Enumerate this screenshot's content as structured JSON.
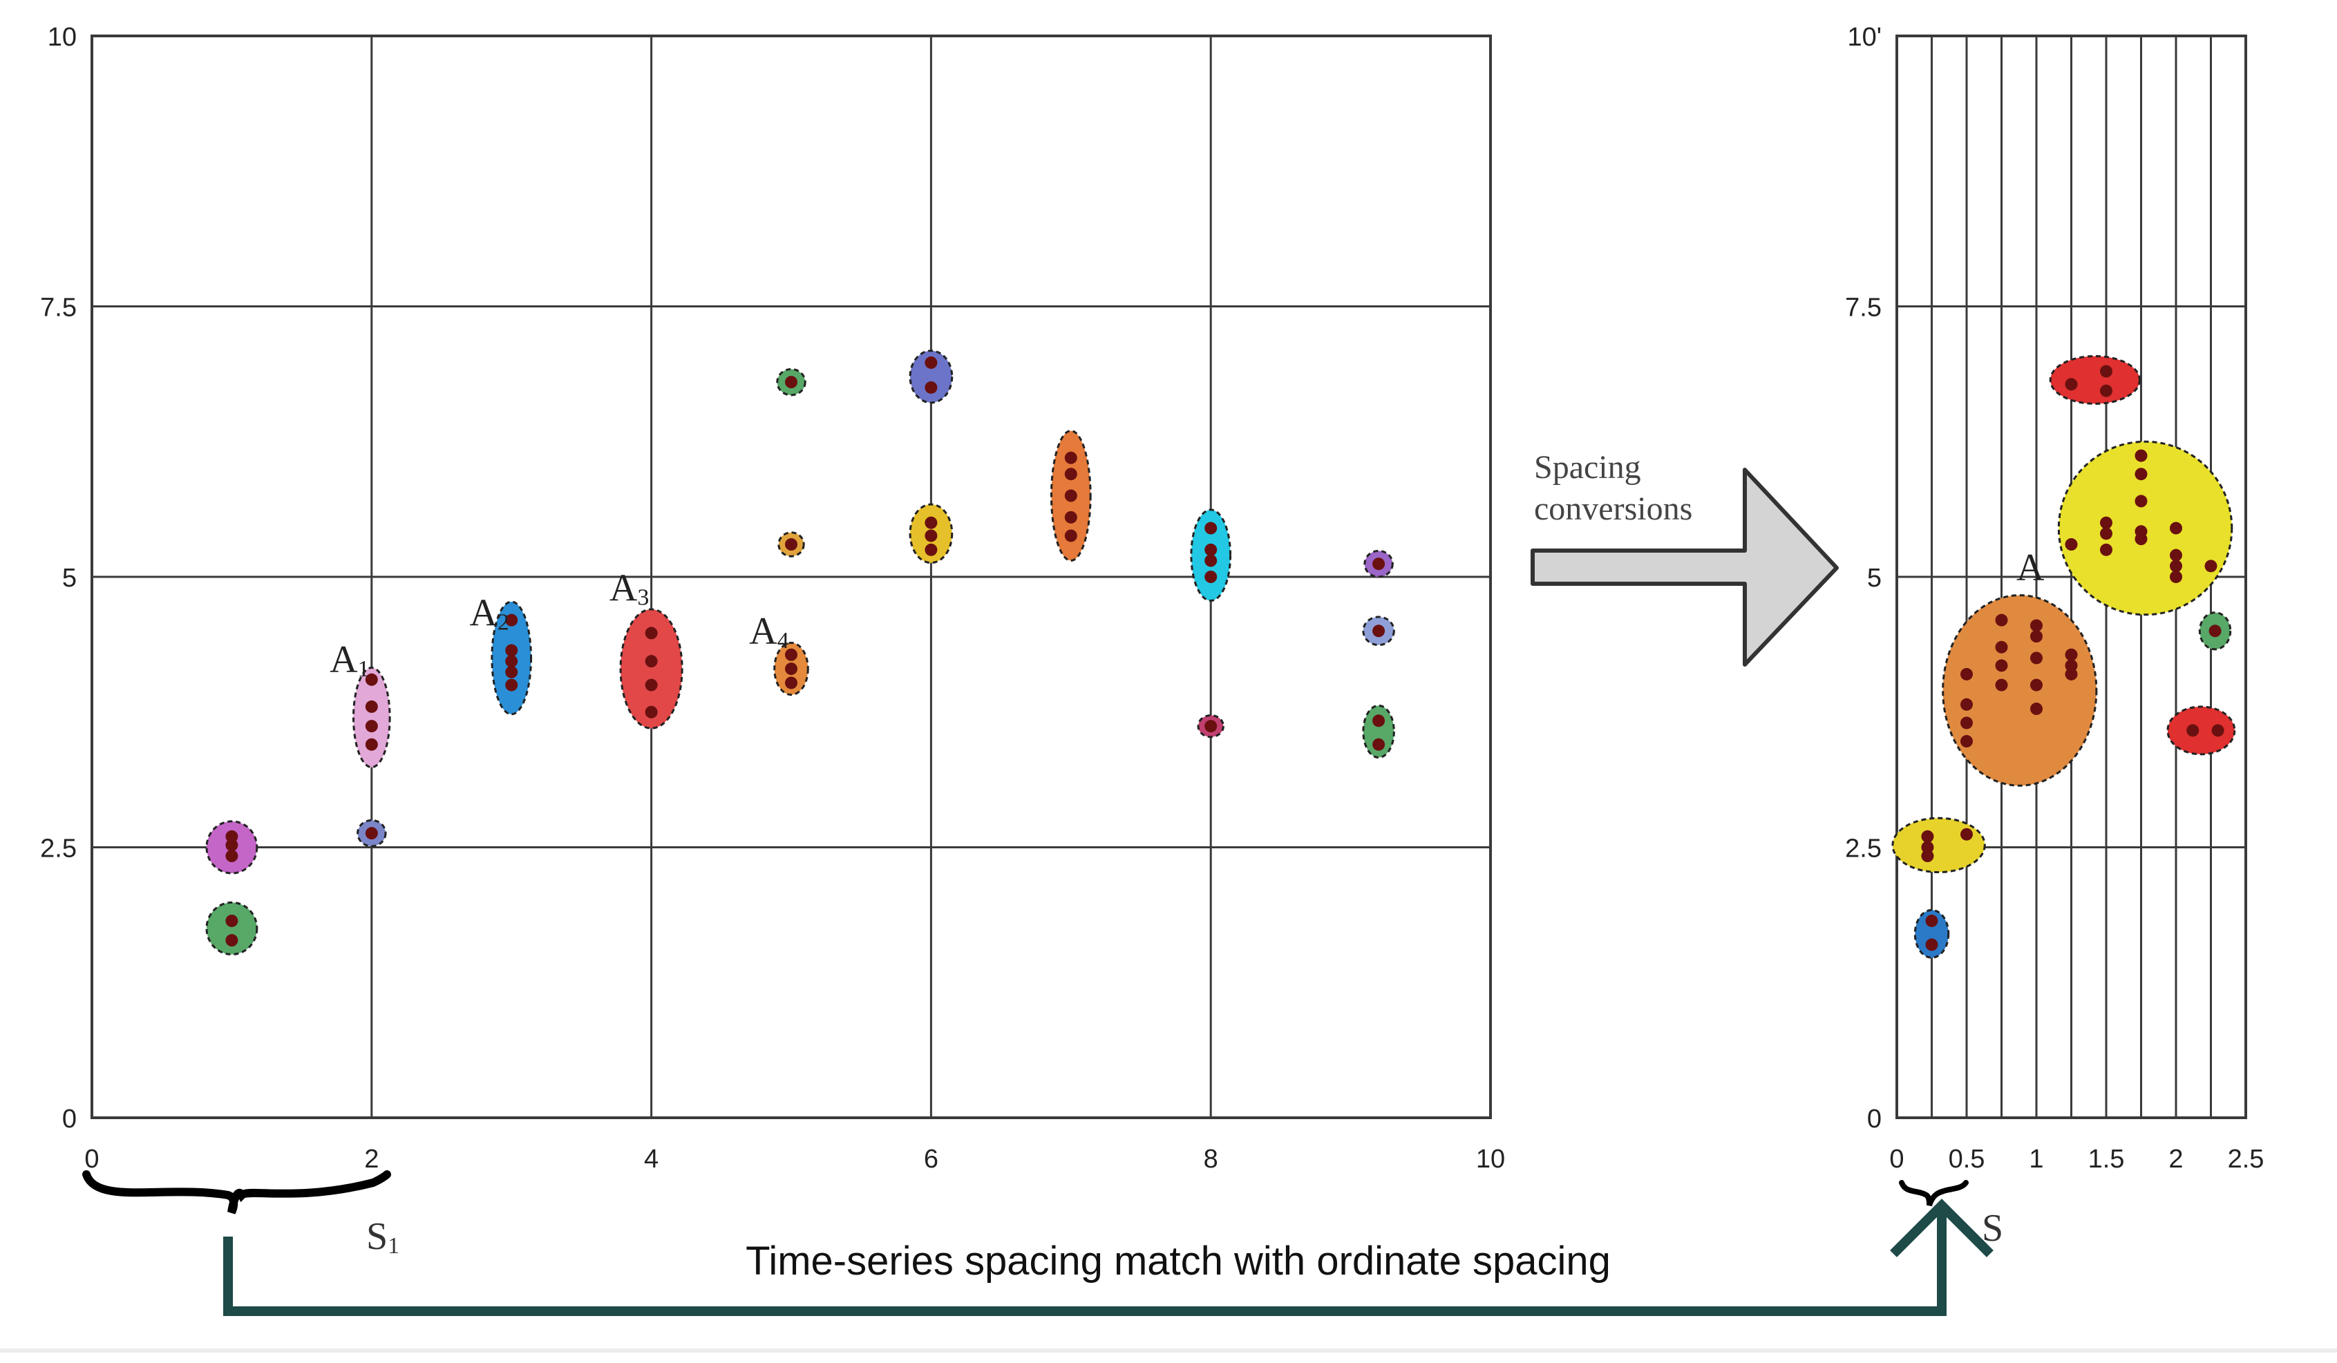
{
  "left_chart": {
    "x_ticks": [
      "0",
      "2",
      "4",
      "6",
      "8",
      "10"
    ],
    "y_ticks": [
      "0",
      "2.5",
      "5",
      "7.5",
      "10"
    ],
    "labels": [
      {
        "base": "A",
        "sub": "1"
      },
      {
        "base": "A",
        "sub": "2"
      },
      {
        "base": "A",
        "sub": "3"
      },
      {
        "base": "A",
        "sub": "4"
      }
    ],
    "clusters": [
      {
        "x": 1.0,
        "y": 2.5,
        "rx": 0.18,
        "ry": 0.24,
        "color": "#c466c8",
        "points": [
          [
            1.0,
            2.42
          ],
          [
            1.0,
            2.52
          ],
          [
            1.0,
            2.6
          ]
        ]
      },
      {
        "x": 1.0,
        "y": 1.75,
        "rx": 0.18,
        "ry": 0.24,
        "color": "#58a868",
        "points": [
          [
            1.0,
            1.64
          ],
          [
            1.0,
            1.82
          ]
        ]
      },
      {
        "x": 2.0,
        "y": 3.7,
        "rx": 0.13,
        "ry": 0.46,
        "color": "#e2a8d8",
        "points": [
          [
            2.0,
            4.05
          ],
          [
            2.0,
            3.8
          ],
          [
            2.0,
            3.62
          ],
          [
            2.0,
            3.45
          ]
        ]
      },
      {
        "x": 2.0,
        "y": 2.63,
        "rx": 0.1,
        "ry": 0.12,
        "color": "#7b86c8",
        "points": [
          [
            2.0,
            2.63
          ]
        ]
      },
      {
        "x": 3.0,
        "y": 4.25,
        "rx": 0.14,
        "ry": 0.52,
        "color": "#2a8fd6",
        "points": [
          [
            3.0,
            4.6
          ],
          [
            3.0,
            4.32
          ],
          [
            3.0,
            4.22
          ],
          [
            3.0,
            4.12
          ],
          [
            3.0,
            4.0
          ]
        ]
      },
      {
        "x": 4.0,
        "y": 4.15,
        "rx": 0.22,
        "ry": 0.55,
        "color": "#e24848",
        "points": [
          [
            4.0,
            4.48
          ],
          [
            4.0,
            4.22
          ],
          [
            4.0,
            4.0
          ],
          [
            4.0,
            3.75
          ]
        ]
      },
      {
        "x": 5.0,
        "y": 6.8,
        "rx": 0.1,
        "ry": 0.12,
        "color": "#58a868",
        "points": [
          [
            5.0,
            6.8
          ]
        ]
      },
      {
        "x": 5.0,
        "y": 5.3,
        "rx": 0.09,
        "ry": 0.11,
        "color": "#e1a43c",
        "points": [
          [
            5.0,
            5.3
          ]
        ]
      },
      {
        "x": 5.0,
        "y": 4.15,
        "rx": 0.12,
        "ry": 0.24,
        "color": "#e58a3c",
        "points": [
          [
            5.0,
            4.28
          ],
          [
            5.0,
            4.15
          ],
          [
            5.0,
            4.02
          ]
        ]
      },
      {
        "x": 6.0,
        "y": 6.85,
        "rx": 0.15,
        "ry": 0.24,
        "color": "#6b74c8",
        "points": [
          [
            6.0,
            6.98
          ],
          [
            6.0,
            6.75
          ]
        ]
      },
      {
        "x": 6.0,
        "y": 5.4,
        "rx": 0.15,
        "ry": 0.27,
        "color": "#e6c02a",
        "points": [
          [
            6.0,
            5.5
          ],
          [
            6.0,
            5.38
          ],
          [
            6.0,
            5.25
          ]
        ]
      },
      {
        "x": 7.0,
        "y": 5.75,
        "rx": 0.14,
        "ry": 0.6,
        "color": "#e57a3a",
        "points": [
          [
            7.0,
            6.1
          ],
          [
            7.0,
            5.95
          ],
          [
            7.0,
            5.75
          ],
          [
            7.0,
            5.55
          ],
          [
            7.0,
            5.38
          ]
        ]
      },
      {
        "x": 8.0,
        "y": 5.2,
        "rx": 0.14,
        "ry": 0.42,
        "color": "#22c8e4",
        "points": [
          [
            8.0,
            5.45
          ],
          [
            8.0,
            5.25
          ],
          [
            8.0,
            5.15
          ],
          [
            8.0,
            5.0
          ]
        ]
      },
      {
        "x": 8.0,
        "y": 3.62,
        "rx": 0.09,
        "ry": 0.1,
        "color": "#c04070",
        "points": [
          [
            8.0,
            3.62
          ]
        ]
      },
      {
        "x": 9.2,
        "y": 5.12,
        "rx": 0.1,
        "ry": 0.12,
        "color": "#9b66c8",
        "points": [
          [
            9.2,
            5.12
          ]
        ]
      },
      {
        "x": 9.2,
        "y": 4.5,
        "rx": 0.11,
        "ry": 0.13,
        "color": "#8fa0d8",
        "points": [
          [
            9.2,
            4.5
          ]
        ]
      },
      {
        "x": 9.2,
        "y": 3.57,
        "rx": 0.11,
        "ry": 0.24,
        "color": "#58a868",
        "points": [
          [
            9.2,
            3.67
          ],
          [
            9.2,
            3.45
          ]
        ]
      }
    ]
  },
  "right_chart": {
    "x_ticks": [
      "0",
      "0.5",
      "1",
      "1.5",
      "2",
      "2.5"
    ],
    "y_ticks": [
      "0",
      "2.5",
      "5",
      "7.5",
      "10'"
    ],
    "label": "A",
    "clusters": [
      {
        "x": 0.25,
        "y": 1.7,
        "rx": 0.12,
        "ry": 0.22,
        "color": "#2a7ac8",
        "points": [
          [
            0.25,
            1.82
          ],
          [
            0.25,
            1.6
          ]
        ]
      },
      {
        "x": 0.3,
        "y": 2.52,
        "rx": 0.33,
        "ry": 0.25,
        "color": "#e6d22a",
        "points": [
          [
            0.22,
            2.6
          ],
          [
            0.22,
            2.5
          ],
          [
            0.22,
            2.42
          ],
          [
            0.5,
            2.62
          ]
        ]
      },
      {
        "x": 0.88,
        "y": 3.95,
        "rx": 0.55,
        "ry": 0.88,
        "color": "#e08a40",
        "points": [
          [
            0.5,
            4.1
          ],
          [
            0.5,
            3.82
          ],
          [
            0.5,
            3.65
          ],
          [
            0.5,
            3.48
          ],
          [
            0.75,
            4.6
          ],
          [
            0.75,
            4.35
          ],
          [
            0.75,
            4.18
          ],
          [
            0.75,
            4.0
          ],
          [
            1.0,
            4.55
          ],
          [
            1.0,
            4.45
          ],
          [
            1.0,
            4.25
          ],
          [
            1.0,
            4.0
          ],
          [
            1.0,
            3.78
          ],
          [
            1.25,
            4.28
          ],
          [
            1.25,
            4.18
          ],
          [
            1.25,
            4.1
          ]
        ]
      },
      {
        "x": 1.78,
        "y": 5.45,
        "rx": 0.62,
        "ry": 0.8,
        "color": "#e8e02a",
        "points": [
          [
            1.25,
            5.3
          ],
          [
            1.5,
            5.5
          ],
          [
            1.5,
            5.4
          ],
          [
            1.5,
            5.25
          ],
          [
            1.75,
            6.12
          ],
          [
            1.75,
            5.95
          ],
          [
            1.75,
            5.7
          ],
          [
            1.75,
            5.42
          ],
          [
            1.75,
            5.35
          ],
          [
            2.0,
            5.45
          ],
          [
            2.0,
            5.2
          ],
          [
            2.0,
            5.1
          ],
          [
            2.0,
            5.0
          ],
          [
            2.25,
            5.1
          ]
        ]
      },
      {
        "x": 1.42,
        "y": 6.82,
        "rx": 0.32,
        "ry": 0.22,
        "color": "#e03030",
        "points": [
          [
            1.25,
            6.78
          ],
          [
            1.5,
            6.9
          ],
          [
            1.5,
            6.72
          ]
        ]
      },
      {
        "x": 2.28,
        "y": 4.5,
        "rx": 0.11,
        "ry": 0.17,
        "color": "#58a868",
        "points": [
          [
            2.28,
            4.5
          ]
        ]
      },
      {
        "x": 2.18,
        "y": 3.58,
        "rx": 0.24,
        "ry": 0.22,
        "color": "#e03030",
        "points": [
          [
            2.12,
            3.58
          ],
          [
            2.3,
            3.58
          ]
        ]
      }
    ]
  },
  "annotations": {
    "arrow_label_1": "Spacing",
    "arrow_label_2": "conversions",
    "s1_base": "S",
    "s1_sub": "1",
    "s_right": "S",
    "caption": "Time-series spacing match with ordinate spacing"
  },
  "colors": {
    "grid": "#3a3a3a",
    "point": "#6a1010",
    "connector": "#1e4a48",
    "big_arrow_fill": "#d4d4d4",
    "big_arrow_stroke": "#333333"
  }
}
